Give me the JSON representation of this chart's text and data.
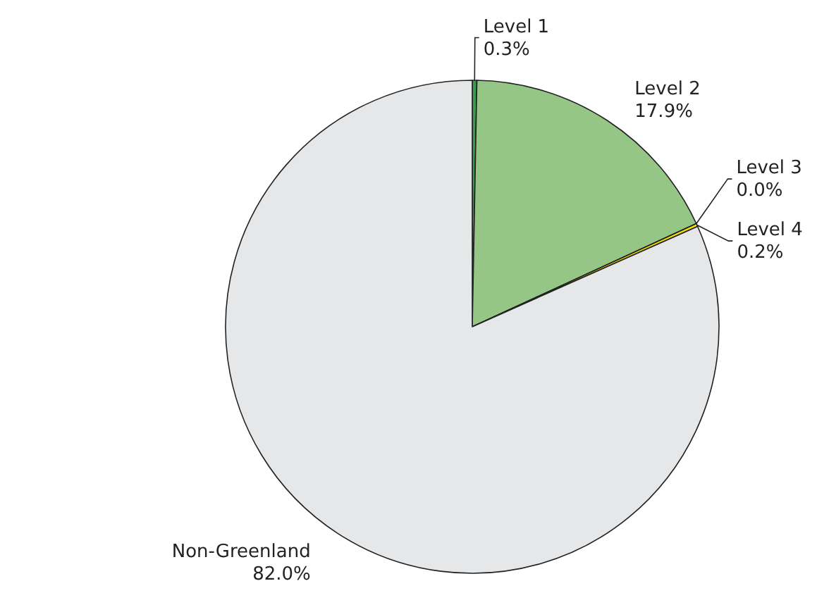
{
  "chart_data": {
    "type": "pie",
    "categories": [
      "Level 1",
      "Level 2",
      "Level 3",
      "Level 4",
      "Non-Greenland"
    ],
    "values": [
      0.3,
      17.9,
      0.0,
      0.2,
      82.0
    ],
    "value_labels": [
      "0.3%",
      "17.9%",
      "0.0%",
      "0.2%",
      "82.0%"
    ],
    "colors": [
      "#3a9a4f",
      "#95c685",
      "#f0a030",
      "#f5e000",
      "#e6e7e8"
    ]
  }
}
